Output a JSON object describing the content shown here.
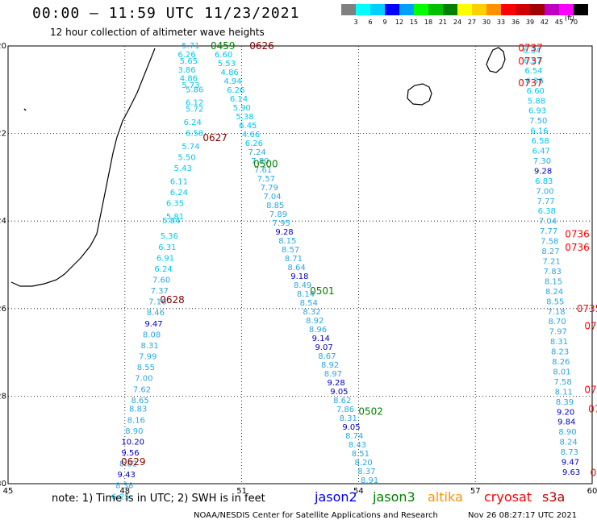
{
  "header": {
    "title": "00:00 — 11:59 UTC 11/23/2021",
    "subtitle": "12 hour collection of altimeter wave heights"
  },
  "color_scale": {
    "unit": "(ft)",
    "colors": [
      "#808080",
      "#00ffff",
      "#00d0ff",
      "#0000ff",
      "#00a0ff",
      "#00ff00",
      "#00c000",
      "#008000",
      "#ffff00",
      "#ffd000",
      "#ff9000",
      "#ff0000",
      "#d00000",
      "#a00000",
      "#c000c0",
      "#ff00ff",
      "#000000"
    ],
    "labels": [
      "3",
      "6",
      "9",
      "12",
      "15",
      "18",
      "21",
      "24",
      "27",
      "30",
      "33",
      "36",
      "39",
      "42",
      "45",
      "70"
    ]
  },
  "map": {
    "lon_range": [
      45,
      60
    ],
    "lat_range": [
      -30,
      -20
    ],
    "lon_ticks": [
      "45",
      "48",
      "51",
      "54",
      "57",
      "60"
    ],
    "lat_ticks": [
      "-20",
      "-22",
      "-24",
      "-26",
      "-28",
      "-30"
    ]
  },
  "tracks": [
    {
      "name": "cyan",
      "color": "#00bfe6",
      "points": [
        {
          "lon": 49.5,
          "lat": -20.0,
          "v": "5.71"
        },
        {
          "lon": 49.4,
          "lat": -20.2,
          "v": "6.26"
        },
        {
          "lon": 49.45,
          "lat": -20.35,
          "v": "5.65"
        },
        {
          "lon": 49.4,
          "lat": -20.55,
          "v": "3.86"
        },
        {
          "lon": 49.45,
          "lat": -20.75,
          "v": "4.86"
        },
        {
          "lon": 49.5,
          "lat": -20.9,
          "v": "5.73"
        },
        {
          "lon": 49.6,
          "lat": -21.0,
          "v": "5.86"
        },
        {
          "lon": 49.6,
          "lat": -21.3,
          "v": "6.12"
        },
        {
          "lon": 49.6,
          "lat": -21.45,
          "v": "5.72"
        },
        {
          "lon": 49.55,
          "lat": -21.75,
          "v": "6.24"
        },
        {
          "lon": 49.6,
          "lat": -22.0,
          "v": "6.58"
        },
        {
          "lon": 49.5,
          "lat": -22.3,
          "v": "5.74"
        },
        {
          "lon": 49.4,
          "lat": -22.55,
          "v": "5.50"
        },
        {
          "lon": 49.3,
          "lat": -22.8,
          "v": "5.43"
        },
        {
          "lon": 49.2,
          "lat": -23.1,
          "v": "6.11"
        },
        {
          "lon": 49.2,
          "lat": -23.35,
          "v": "6.24"
        },
        {
          "lon": 49.1,
          "lat": -23.6,
          "v": "6.35"
        },
        {
          "lon": 49.1,
          "lat": -23.9,
          "v": "5.81"
        },
        {
          "lon": 49.0,
          "lat": -24.0,
          "v": "5.84"
        },
        {
          "lon": 48.95,
          "lat": -24.35,
          "v": "5.36"
        },
        {
          "lon": 48.9,
          "lat": -24.6,
          "v": "6.31"
        },
        {
          "lon": 48.85,
          "lat": -24.85,
          "v": "6.91"
        },
        {
          "lon": 48.8,
          "lat": -25.1,
          "v": "6.24"
        },
        {
          "lon": 48.75,
          "lat": -25.35,
          "v": "7.60"
        },
        {
          "lon": 48.7,
          "lat": -25.6,
          "v": "7.37"
        },
        {
          "lon": 48.65,
          "lat": -25.85,
          "v": "7.16"
        },
        {
          "lon": 48.6,
          "lat": -26.1,
          "v": "8.46"
        },
        {
          "lon": 48.55,
          "lat": -26.35,
          "v": "9.47"
        },
        {
          "lon": 48.5,
          "lat": -26.6,
          "v": "8.08"
        },
        {
          "lon": 48.45,
          "lat": -26.85,
          "v": "8.31"
        },
        {
          "lon": 48.4,
          "lat": -27.1,
          "v": "7.99"
        },
        {
          "lon": 48.35,
          "lat": -27.35,
          "v": "8.55"
        },
        {
          "lon": 48.3,
          "lat": -27.6,
          "v": "7.00"
        },
        {
          "lon": 48.25,
          "lat": -27.85,
          "v": "7.62"
        },
        {
          "lon": 48.2,
          "lat": -28.1,
          "v": "8.65"
        },
        {
          "lon": 48.15,
          "lat": -28.3,
          "v": "8.83"
        },
        {
          "lon": 48.1,
          "lat": -28.55,
          "v": "8.16"
        },
        {
          "lon": 48.05,
          "lat": -28.8,
          "v": "8.90"
        },
        {
          "lon": 47.95,
          "lat": -29.05,
          "v": "10.20"
        },
        {
          "lon": 47.95,
          "lat": -29.3,
          "v": "9.56"
        },
        {
          "lon": 47.9,
          "lat": -29.55,
          "v": "8.82"
        },
        {
          "lon": 47.85,
          "lat": -29.8,
          "v": "9.43"
        },
        {
          "lon": 47.8,
          "lat": -30.05,
          "v": "8.38"
        },
        {
          "lon": 47.7,
          "lat": -30.3,
          "v": "6.25"
        }
      ]
    }
  ],
  "track_labels": [
    {
      "lon": 50.2,
      "lat": -20.0,
      "text": "0459",
      "color": "#008000"
    },
    {
      "lon": 51.2,
      "lat": -20.0,
      "text": "0626",
      "color": "#800000"
    },
    {
      "lon": 50.0,
      "lat": -22.1,
      "text": "0627",
      "color": "#800000"
    },
    {
      "lon": 51.3,
      "lat": -22.7,
      "text": "0500",
      "color": "#008000"
    },
    {
      "lon": 48.9,
      "lat": -25.8,
      "text": "0628",
      "color": "#800000"
    },
    {
      "lon": 52.75,
      "lat": -25.6,
      "text": "0501",
      "color": "#008000"
    },
    {
      "lon": 47.9,
      "lat": -29.5,
      "text": "0629",
      "color": "#800000"
    },
    {
      "lon": 54.0,
      "lat": -28.35,
      "text": "0502",
      "color": "#008000"
    },
    {
      "lon": 58.1,
      "lat": -20.05,
      "text": "0737",
      "color": "#ff0000"
    },
    {
      "lon": 58.1,
      "lat": -20.35,
      "text": "0737",
      "color": "#ff0000"
    },
    {
      "lon": 58.1,
      "lat": -20.85,
      "text": "0737",
      "color": "#ff0000"
    },
    {
      "lon": 59.3,
      "lat": -24.3,
      "text": "0736",
      "color": "#ff0000"
    },
    {
      "lon": 59.3,
      "lat": -24.6,
      "text": "0736",
      "color": "#ff0000"
    },
    {
      "lon": 59.6,
      "lat": -26.0,
      "text": "0735",
      "color": "#ff0000"
    },
    {
      "lon": 59.8,
      "lat": -26.4,
      "text": "073",
      "color": "#ff0000"
    },
    {
      "lon": 59.8,
      "lat": -27.85,
      "text": "07",
      "color": "#ff0000"
    },
    {
      "lon": 59.9,
      "lat": -28.3,
      "text": "07",
      "color": "#ff0000"
    },
    {
      "lon": 59.95,
      "lat": -29.75,
      "text": "0",
      "color": "#ff0000"
    }
  ],
  "track2": [
    {
      "v": "6.60"
    },
    {
      "v": "5.53"
    },
    {
      "v": "4.86"
    },
    {
      "v": "4.94"
    },
    {
      "v": "6.26"
    },
    {
      "v": "6.14"
    },
    {
      "v": "5.90"
    },
    {
      "v": "5.38"
    },
    {
      "v": "6.45"
    },
    {
      "v": "4.66"
    },
    {
      "v": "6.26"
    },
    {
      "v": "7.24"
    },
    {
      "v": "7.80"
    },
    {
      "v": "7.61"
    },
    {
      "v": "7.57"
    },
    {
      "v": "7.79"
    },
    {
      "v": "7.04"
    },
    {
      "v": "8.85"
    },
    {
      "v": "7.89"
    },
    {
      "v": "7.95"
    },
    {
      "v": "9.28"
    },
    {
      "v": "8.15"
    },
    {
      "v": "8.57"
    },
    {
      "v": "8.71"
    },
    {
      "v": "8.64"
    },
    {
      "v": "9.18"
    },
    {
      "v": "8.49"
    },
    {
      "v": "8.14"
    },
    {
      "v": "8.54"
    },
    {
      "v": "8.32"
    },
    {
      "v": "8.92"
    },
    {
      "v": "8.96"
    },
    {
      "v": "9.14"
    },
    {
      "v": "9.07"
    },
    {
      "v": "8.67"
    },
    {
      "v": "8.92"
    },
    {
      "v": "8.97"
    },
    {
      "v": "9.28"
    },
    {
      "v": "9.05"
    },
    {
      "v": "8.62"
    },
    {
      "v": "7.86"
    },
    {
      "v": "8.31"
    },
    {
      "v": "9.05"
    },
    {
      "v": "8.74"
    },
    {
      "v": "8.43"
    },
    {
      "v": "8.51"
    },
    {
      "v": "8.20"
    },
    {
      "v": "8.37"
    },
    {
      "v": "8.91"
    }
  ],
  "track3": [
    {
      "v": "6.34"
    },
    {
      "v": "6.57"
    },
    {
      "v": "6.54"
    },
    {
      "v": "6.36"
    },
    {
      "v": "6.60"
    },
    {
      "v": "5.88"
    },
    {
      "v": "6.93"
    },
    {
      "v": "7.50"
    },
    {
      "v": "6.16"
    },
    {
      "v": "6.58"
    },
    {
      "v": "6.47"
    },
    {
      "v": "7.30"
    },
    {
      "v": "9.28"
    },
    {
      "v": "6.83"
    },
    {
      "v": "7.00"
    },
    {
      "v": "7.77"
    },
    {
      "v": "6.38"
    },
    {
      "v": "7.04"
    },
    {
      "v": "7.77"
    },
    {
      "v": "7.58"
    },
    {
      "v": "8.27"
    },
    {
      "v": "7.21"
    },
    {
      "v": "7.83"
    },
    {
      "v": "8.15"
    },
    {
      "v": "8.24"
    },
    {
      "v": "8.55"
    },
    {
      "v": "7.18"
    },
    {
      "v": "8.70"
    },
    {
      "v": "7.97"
    },
    {
      "v": "8.31"
    },
    {
      "v": "8.23"
    },
    {
      "v": "8.26"
    },
    {
      "v": "8.01"
    },
    {
      "v": "7.58"
    },
    {
      "v": "8.11"
    },
    {
      "v": "8.39"
    },
    {
      "v": "9.20"
    },
    {
      "v": "9.84"
    },
    {
      "v": "8.90"
    },
    {
      "v": "8.24"
    },
    {
      "v": "8.73"
    },
    {
      "v": "9.47"
    },
    {
      "v": "9.63"
    }
  ],
  "footer": {
    "note": "note: 1) Time is in UTC; 2) SWH is in feet",
    "legend": [
      {
        "text": "jason2",
        "color": "#0000ff"
      },
      {
        "text": "jason3",
        "color": "#008000"
      },
      {
        "text": "altika",
        "color": "#ff9000"
      },
      {
        "text": "cryosat",
        "color": "#ff0000"
      },
      {
        "text": "s3a",
        "color": "#c00000"
      }
    ],
    "credit": "NOAA/NESDIS Center for Satellite Applications and Research",
    "stamp": "Nov 26 08:27:17 UTC 2021"
  }
}
